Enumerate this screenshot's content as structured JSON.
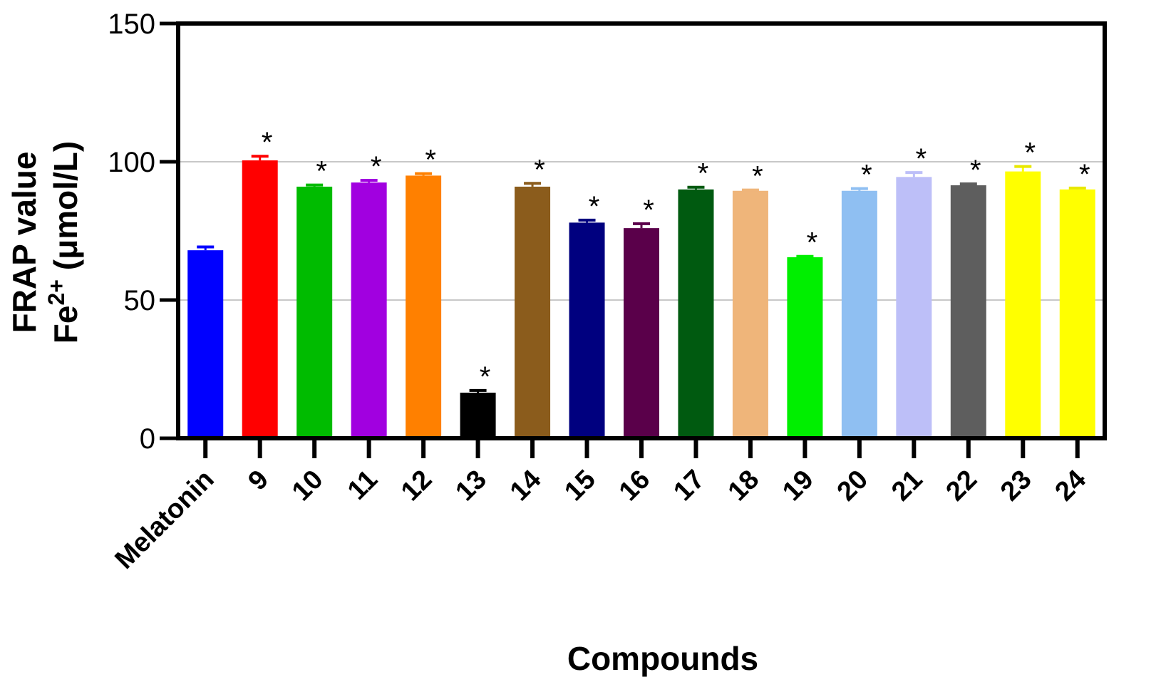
{
  "chart_data": {
    "type": "bar",
    "xlabel": "Compounds",
    "ylabel_line1": "FRAP value",
    "ylabel_line2_prefix": "Fe",
    "ylabel_line2_sup": "2+",
    "ylabel_line2_suffix": " (μmol/L)",
    "ylim": [
      0,
      150
    ],
    "yticks": [
      0,
      50,
      100,
      150
    ],
    "grid": "horizontal",
    "categories": [
      "Melatonin",
      "9",
      "10",
      "11",
      "12",
      "13",
      "14",
      "15",
      "16",
      "17",
      "18",
      "19",
      "20",
      "21",
      "22",
      "23",
      "24"
    ],
    "values": [
      68,
      100.5,
      91,
      92.5,
      95,
      16.5,
      91,
      78,
      76,
      90,
      89.5,
      65.5,
      89.5,
      94.5,
      91.5,
      96.5,
      90
    ],
    "errors": [
      1.2,
      1.5,
      0.6,
      0.8,
      0.7,
      0.8,
      1.2,
      0.9,
      1.6,
      0.8,
      0.3,
      0.3,
      0.8,
      1.6,
      0.5,
      1.8,
      0.5
    ],
    "significance": [
      "",
      "*",
      "*",
      "*",
      "*",
      "*",
      "*",
      "*",
      "*",
      "*",
      "*",
      "*",
      "*",
      "*",
      "*",
      "*",
      "*"
    ],
    "colors": [
      "#0000ff",
      "#ff0000",
      "#00bb00",
      "#a100e0",
      "#ff8000",
      "#000000",
      "#8b5c1c",
      "#00007f",
      "#5a004a",
      "#005a10",
      "#efb57a",
      "#00ef00",
      "#8fbff2",
      "#bdbff8",
      "#5e5e5e",
      "#ffff00",
      "#ffff00"
    ]
  }
}
